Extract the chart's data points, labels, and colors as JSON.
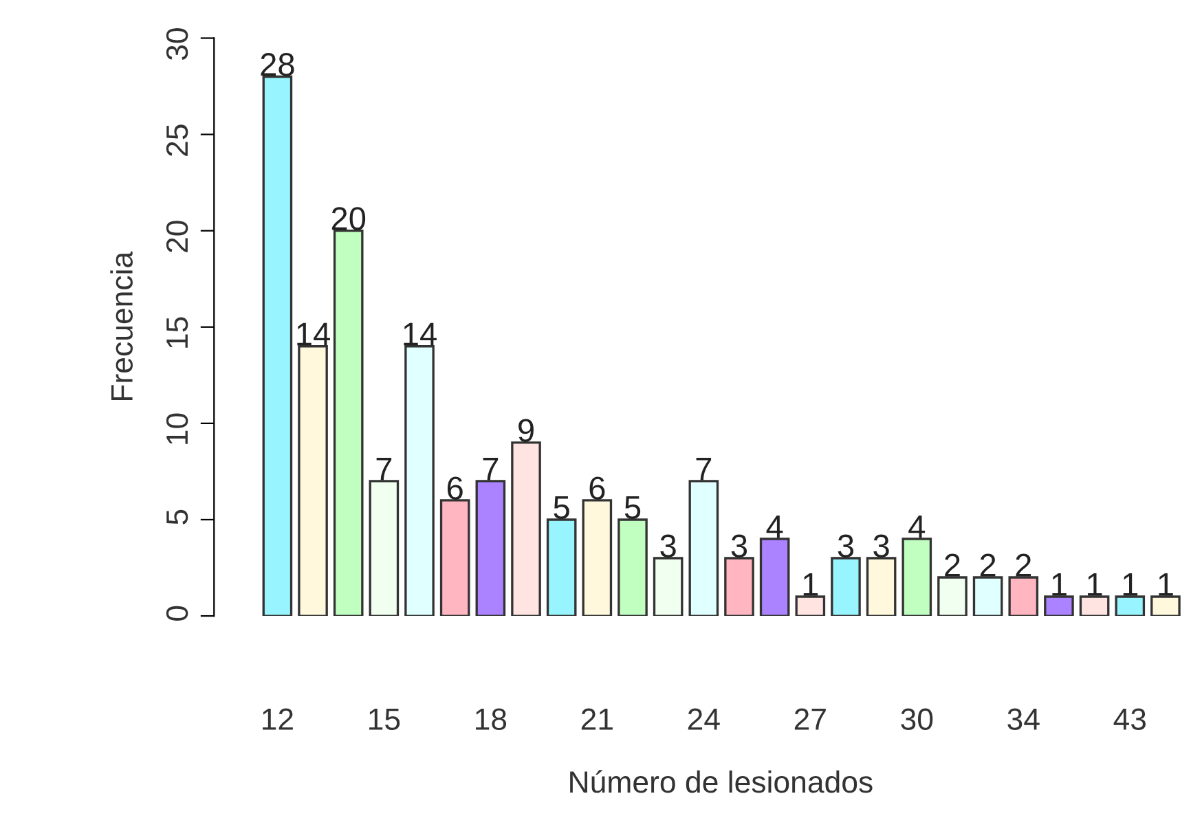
{
  "chart_data": {
    "type": "bar",
    "xlabel": "Número de lesionados",
    "ylabel": "Frecuencia",
    "categories": [
      "12",
      null,
      null,
      "15",
      null,
      null,
      "18",
      null,
      null,
      "21",
      null,
      null,
      "24",
      null,
      null,
      "27",
      null,
      null,
      "30",
      null,
      null,
      "34",
      null,
      null,
      "43",
      null
    ],
    "values": [
      28,
      14,
      20,
      7,
      14,
      6,
      7,
      9,
      5,
      6,
      5,
      3,
      7,
      3,
      4,
      1,
      3,
      3,
      4,
      2,
      2,
      2,
      1,
      1,
      1,
      1
    ],
    "colors": [
      "#98f5ff",
      "#fff8dc",
      "#c1ffc1",
      "#f0fff0",
      "#e0ffff",
      "#ffb6c1",
      "#ab82ff",
      "#ffe4e1",
      "#98f5ff",
      "#fff8dc",
      "#c1ffc1",
      "#f0fff0",
      "#e0ffff",
      "#ffb6c1",
      "#ab82ff",
      "#ffe4e1",
      "#98f5ff",
      "#fff8dc",
      "#c1ffc1",
      "#f0fff0",
      "#e0ffff",
      "#ffb6c1",
      "#ab82ff",
      "#ffe4e1",
      "#98f5ff",
      "#fff8dc"
    ],
    "ylim": [
      0,
      30
    ],
    "yticks": [
      0,
      5,
      10,
      15,
      20,
      25,
      30
    ],
    "data_labels": true,
    "grid": false,
    "legend": false
  }
}
